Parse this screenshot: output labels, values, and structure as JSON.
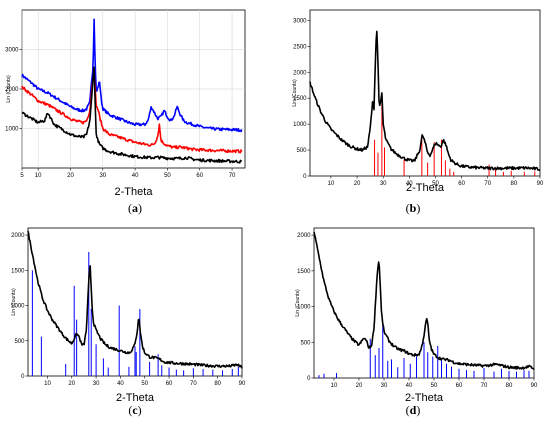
{
  "chart_data": [
    {
      "panel_label_pre": "(",
      "panel_letter": "a",
      "panel_label_post": ")",
      "type": "line",
      "xlabel": "2-Theta",
      "ylabel": "Lin (Counts)",
      "xlim": [
        5,
        74
      ],
      "ylim": [
        0,
        4000
      ],
      "xticks": [
        5,
        10,
        20,
        30,
        40,
        50,
        60,
        70
      ],
      "yticks": [
        1000,
        2000,
        3000
      ],
      "grid": true,
      "series": [
        {
          "color": "#0000ff",
          "x": [
            5,
            8,
            10,
            13,
            15,
            18,
            20,
            22,
            24,
            25,
            26,
            26.5,
            27,
            27.3,
            27.6,
            28,
            28.5,
            29,
            29.5,
            30,
            32,
            35,
            38,
            40,
            43,
            44,
            45,
            46,
            47,
            48,
            49,
            50,
            51,
            52,
            53,
            54,
            55,
            56,
            58,
            60,
            63,
            66,
            70,
            73
          ],
          "y": [
            2350,
            2150,
            2000,
            1900,
            1800,
            1650,
            1550,
            1480,
            1450,
            1500,
            1650,
            2200,
            2550,
            3850,
            2700,
            1900,
            2050,
            2200,
            1750,
            1500,
            1350,
            1250,
            1150,
            1100,
            1100,
            1200,
            1550,
            1400,
            1250,
            1300,
            1450,
            1300,
            1200,
            1300,
            1550,
            1350,
            1200,
            1150,
            1100,
            1050,
            1000,
            980,
            970,
            960
          ]
        },
        {
          "color": "#ff0000",
          "x": [
            5,
            8,
            10,
            13,
            15,
            18,
            20,
            22,
            24,
            25,
            26,
            26.5,
            27,
            27.3,
            27.6,
            28,
            28.5,
            29,
            30,
            32,
            35,
            38,
            40,
            43,
            45,
            46,
            47,
            47.5,
            48,
            49,
            50,
            52,
            54,
            56,
            58,
            60,
            63,
            66,
            70,
            73
          ],
          "y": [
            2050,
            1850,
            1700,
            1600,
            1500,
            1350,
            1250,
            1180,
            1150,
            1200,
            1450,
            1900,
            2300,
            2400,
            2050,
            1550,
            1500,
            1300,
            1000,
            850,
            780,
            700,
            650,
            600,
            580,
            620,
            800,
            1100,
            700,
            620,
            560,
            520,
            530,
            500,
            470,
            460,
            450,
            440,
            430,
            420
          ]
        },
        {
          "color": "#000000",
          "x": [
            5,
            8,
            10,
            12,
            13,
            14,
            15,
            18,
            20,
            22,
            24,
            25,
            26,
            26.5,
            27,
            27.3,
            27.6,
            28,
            29,
            30,
            32,
            35,
            38,
            40,
            43,
            45,
            47,
            50,
            53,
            56,
            58,
            60,
            63,
            66,
            70,
            73
          ],
          "y": [
            1400,
            1250,
            1150,
            1200,
            1400,
            1250,
            1100,
            950,
            850,
            800,
            780,
            850,
            1200,
            1700,
            2300,
            2600,
            1700,
            800,
            600,
            500,
            420,
            360,
            320,
            290,
            270,
            260,
            270,
            250,
            240,
            260,
            220,
            200,
            190,
            180,
            170,
            160
          ]
        }
      ]
    },
    {
      "panel_label_pre": "(",
      "panel_letter": "b",
      "panel_label_post": ")",
      "type": "line",
      "xlabel": "2-Theta",
      "ylabel": "Lin (Counts)",
      "xlim": [
        2,
        90
      ],
      "ylim": [
        0,
        3200
      ],
      "xticks": [
        10,
        20,
        30,
        40,
        50,
        60,
        70,
        80,
        90
      ],
      "yticks": [
        0,
        500,
        1000,
        1500,
        2000,
        2500,
        3000
      ],
      "series": [
        {
          "color": "#000000",
          "x": [
            2,
            4,
            6,
            8,
            10,
            12,
            14,
            16,
            18,
            20,
            22,
            24,
            25,
            26,
            26.5,
            27,
            27.5,
            28,
            28.5,
            29,
            29.5,
            30,
            31,
            33,
            35,
            38,
            40,
            42,
            44,
            45,
            46,
            47,
            48,
            50,
            52,
            53,
            54,
            55,
            56,
            58,
            60,
            63,
            66,
            70,
            75,
            80,
            85,
            88,
            90
          ],
          "y": [
            1800,
            1500,
            1250,
            1050,
            900,
            800,
            700,
            620,
            560,
            520,
            500,
            560,
            900,
            1450,
            1300,
            2200,
            2900,
            2200,
            1300,
            1400,
            1600,
            1000,
            700,
            520,
            430,
            340,
            300,
            290,
            500,
            800,
            650,
            450,
            400,
            640,
            560,
            700,
            600,
            420,
            300,
            230,
            190,
            170,
            160,
            150,
            150,
            150,
            155,
            140,
            130
          ]
        }
      ],
      "sticks": {
        "color": "#ff0000",
        "x": [
          26.7,
          28,
          29.5,
          30.5,
          38,
          44.8,
          47,
          49.5,
          52.3,
          53.8,
          55.5,
          57,
          70.5,
          73,
          76,
          79,
          84,
          88
        ],
        "y": [
          700,
          450,
          1500,
          550,
          320,
          700,
          260,
          650,
          700,
          300,
          140,
          80,
          220,
          120,
          80,
          100,
          80,
          90
        ]
      }
    },
    {
      "panel_label_pre": "(",
      "panel_letter": "c",
      "panel_label_post": ")",
      "type": "line",
      "xlabel": "2-Theta",
      "ylabel": "Lin (Counts)",
      "xlim": [
        2,
        90
      ],
      "ylim": [
        0,
        2100
      ],
      "xticks": [
        10,
        20,
        30,
        40,
        50,
        60,
        70,
        80,
        90
      ],
      "yticks": [
        0,
        500,
        1000,
        1500,
        2000
      ],
      "series": [
        {
          "color": "#000000",
          "x": [
            2,
            4,
            6,
            8,
            10,
            12,
            14,
            16,
            18,
            20,
            22,
            23,
            24,
            25,
            26,
            27,
            27.5,
            28,
            28.5,
            29,
            30,
            32,
            34,
            36,
            38,
            40,
            42,
            44,
            46,
            47,
            47.5,
            48,
            49,
            50,
            52,
            54,
            56,
            58,
            60,
            63,
            66,
            70,
            75,
            80,
            85,
            88,
            90
          ],
          "y": [
            2050,
            1700,
            1350,
            1100,
            930,
            800,
            700,
            600,
            520,
            460,
            600,
            560,
            450,
            440,
            650,
            1350,
            1600,
            1250,
            900,
            750,
            650,
            520,
            440,
            400,
            380,
            360,
            340,
            330,
            450,
            650,
            860,
            680,
            430,
            330,
            270,
            260,
            240,
            200,
            190,
            180,
            175,
            165,
            150,
            140,
            140,
            160,
            120
          ]
        }
      ],
      "sticks": {
        "color": "#0000ff",
        "x": [
          3.8,
          7.5,
          17.5,
          21,
          22,
          27,
          28,
          30,
          33,
          35,
          39.5,
          43.5,
          46,
          46.5,
          48,
          52,
          55.5,
          57,
          60,
          63,
          66,
          70,
          74,
          78,
          82,
          86,
          88.5
        ],
        "y": [
          1500,
          560,
          170,
          1280,
          800,
          1760,
          950,
          450,
          250,
          120,
          1000,
          130,
          420,
          340,
          950,
          200,
          310,
          150,
          120,
          90,
          80,
          110,
          100,
          90,
          80,
          100,
          130
        ]
      }
    },
    {
      "panel_label_pre": "(",
      "panel_letter": "d",
      "panel_label_post": ")",
      "type": "line",
      "xlabel": "2-Theta",
      "ylabel": "Lin (Counts)",
      "xlim": [
        2,
        90
      ],
      "ylim": [
        0,
        2100
      ],
      "xticks": [
        10,
        20,
        30,
        40,
        50,
        60,
        70,
        80,
        90
      ],
      "yticks": [
        0,
        500,
        1000,
        1500,
        2000
      ],
      "series": [
        {
          "color": "#000000",
          "x": [
            2,
            4,
            6,
            8,
            10,
            12,
            14,
            16,
            18,
            20,
            22,
            23,
            24,
            25,
            26,
            27,
            27.5,
            28,
            28.5,
            29,
            30,
            32,
            34,
            36,
            38,
            40,
            42,
            44,
            45,
            46,
            47,
            47.5,
            48,
            49,
            50,
            52,
            54,
            56,
            58,
            60,
            63,
            66,
            70,
            75,
            80,
            85,
            88,
            90
          ],
          "y": [
            2050,
            1700,
            1350,
            1100,
            930,
            800,
            700,
            600,
            520,
            460,
            560,
            520,
            420,
            450,
            700,
            1300,
            1550,
            1650,
            1300,
            900,
            650,
            520,
            440,
            400,
            380,
            340,
            320,
            330,
            420,
            600,
            830,
            780,
            550,
            400,
            330,
            280,
            260,
            250,
            220,
            200,
            190,
            180,
            170,
            190,
            150,
            140,
            160,
            130
          ]
        }
      ],
      "sticks": {
        "color": "#0000ff",
        "x": [
          4,
          6,
          11,
          24.5,
          26.5,
          28,
          29.5,
          31.5,
          33,
          35.5,
          38,
          40.5,
          43,
          46,
          47.5,
          49.5,
          51.5,
          53,
          55,
          57,
          60,
          63,
          66,
          70,
          74,
          77,
          80,
          83,
          86,
          88
        ],
        "y": [
          40,
          60,
          70,
          550,
          320,
          420,
          780,
          240,
          260,
          150,
          280,
          200,
          300,
          500,
          360,
          300,
          450,
          250,
          200,
          160,
          130,
          110,
          100,
          140,
          90,
          130,
          100,
          90,
          110,
          100
        ]
      }
    }
  ]
}
